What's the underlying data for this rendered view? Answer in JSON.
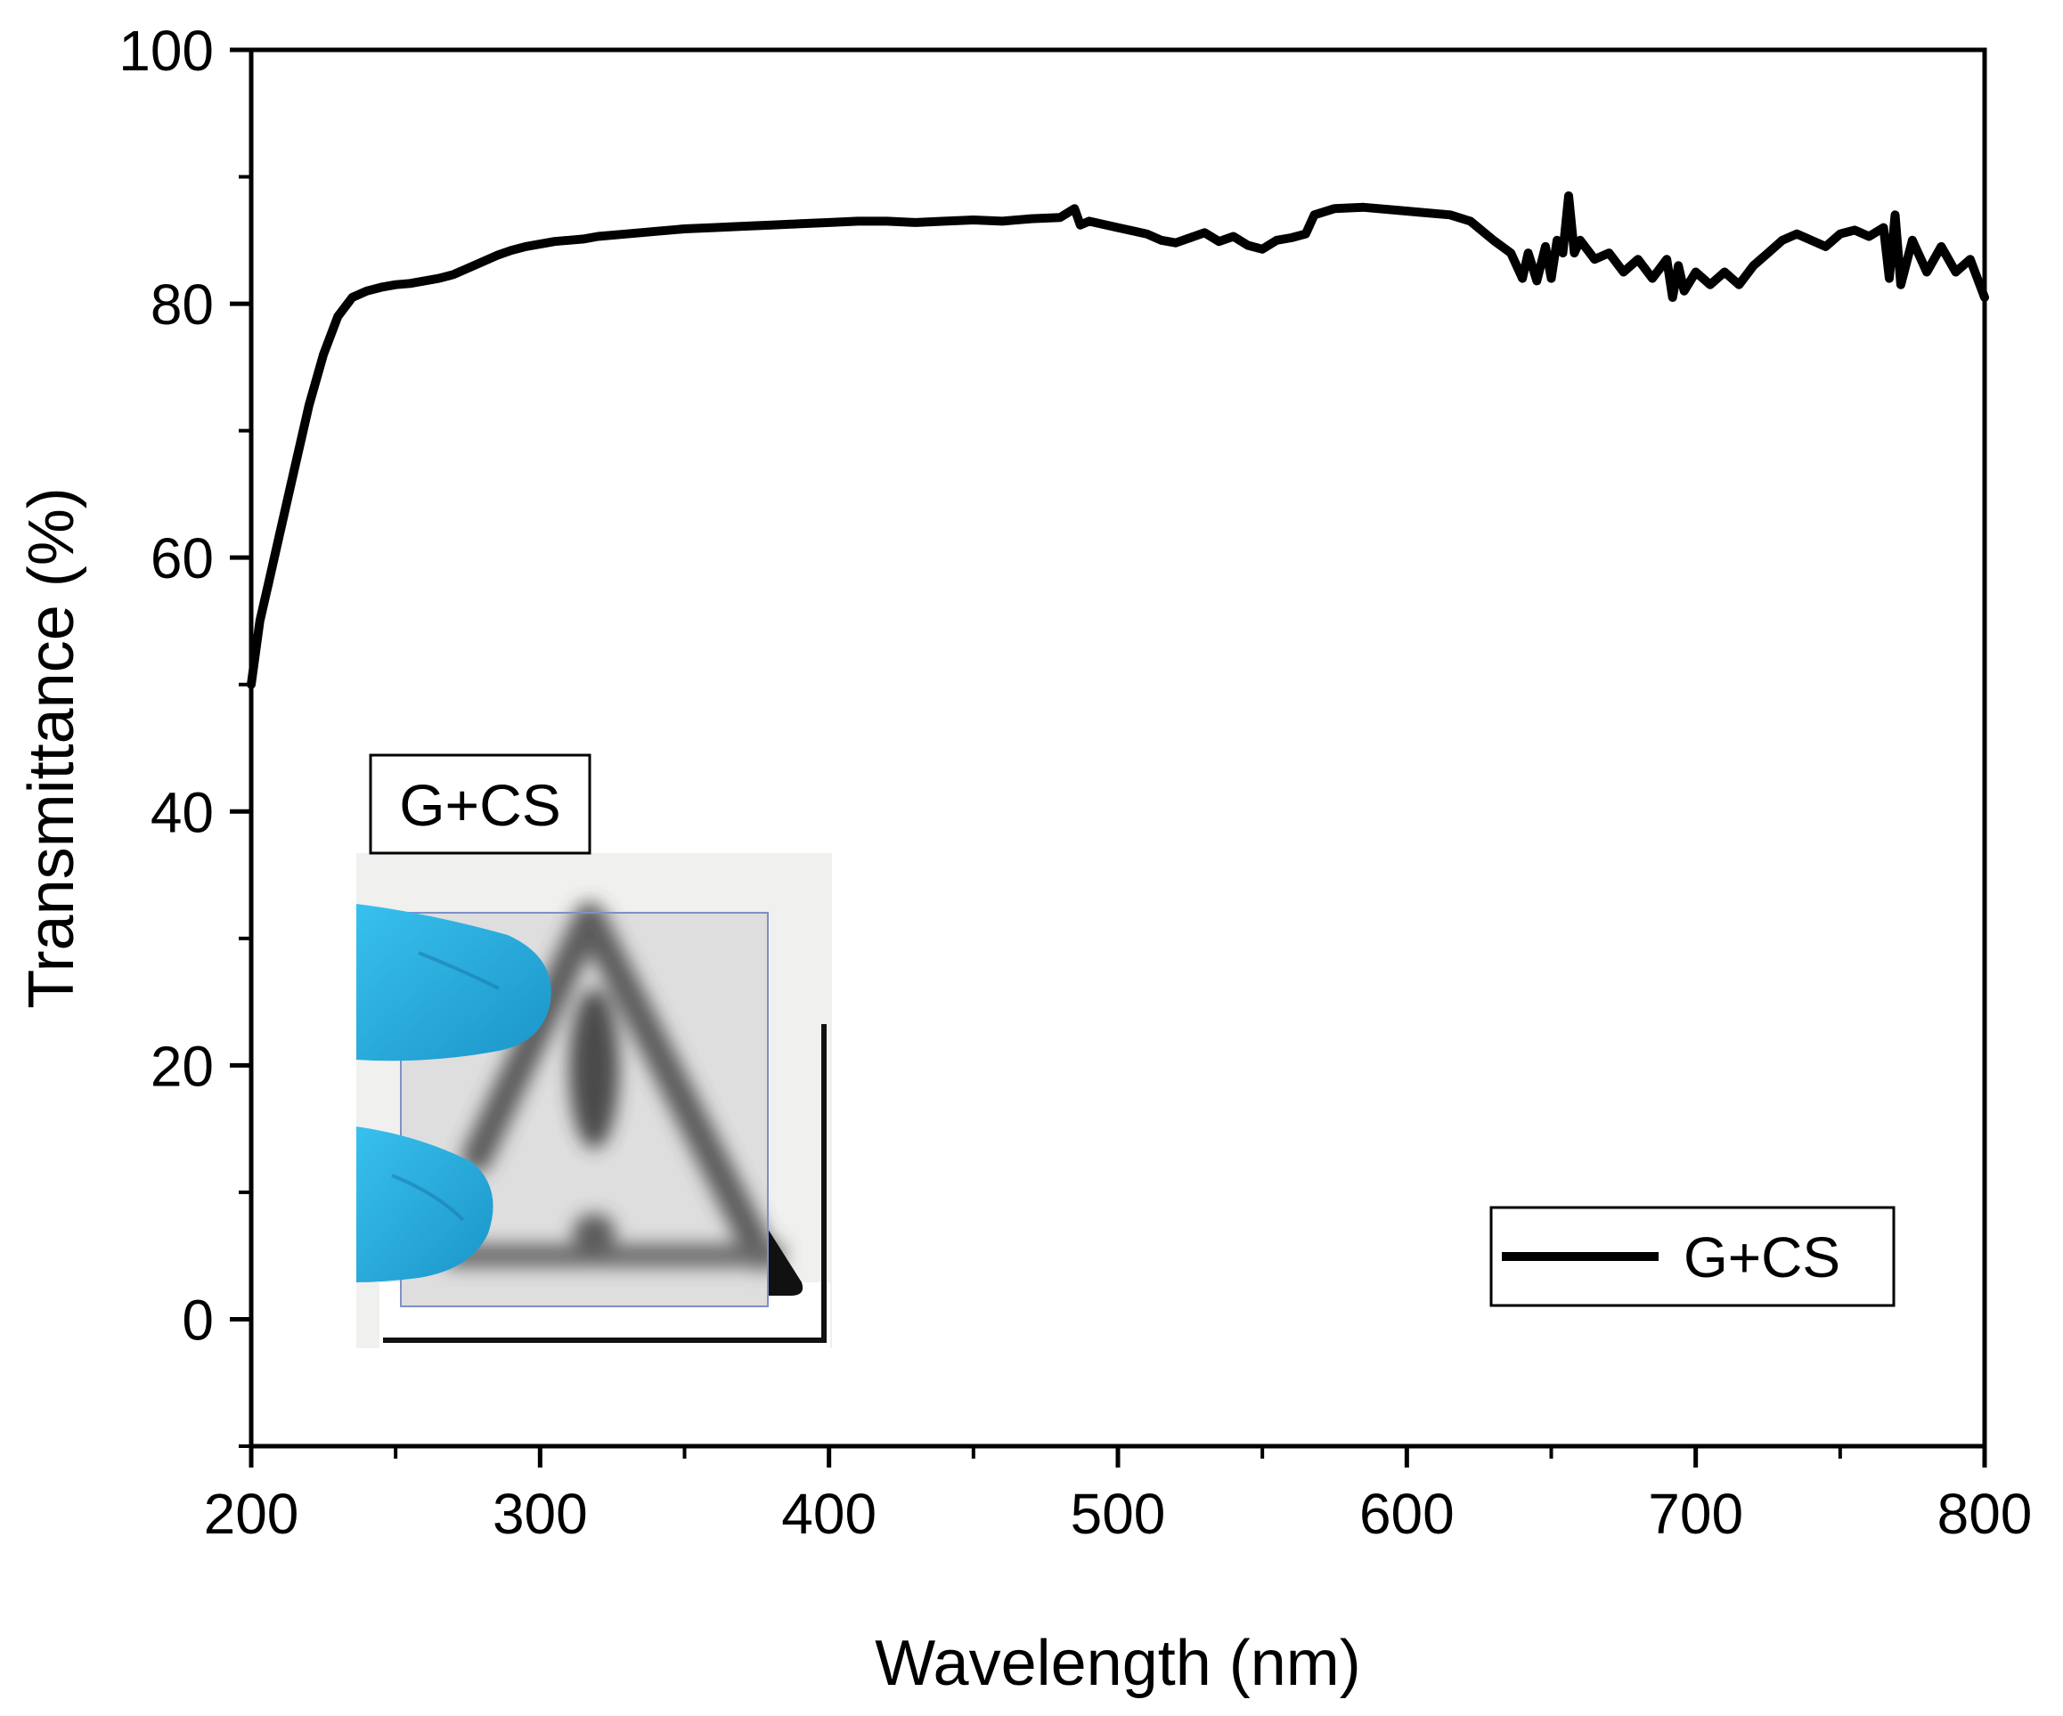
{
  "chart_data": {
    "type": "line",
    "title": "",
    "xlabel": "Wavelength (nm)",
    "ylabel": "Transmittance (%)",
    "xlim": [
      200,
      800
    ],
    "ylim": [
      -10,
      100
    ],
    "xticks": [
      200,
      300,
      400,
      500,
      600,
      700,
      800
    ],
    "yticks": [
      0,
      20,
      40,
      60,
      80,
      100
    ],
    "grid": false,
    "legend_position": "bottom-right",
    "series": [
      {
        "name": "G+CS",
        "color": "#000000",
        "x": [
          200,
          203,
          206,
          210,
          215,
          220,
          225,
          230,
          235,
          240,
          245,
          250,
          255,
          260,
          265,
          270,
          275,
          280,
          285,
          290,
          295,
          300,
          305,
          310,
          315,
          320,
          330,
          340,
          350,
          360,
          370,
          380,
          390,
          400,
          410,
          420,
          430,
          440,
          450,
          460,
          470,
          480,
          485,
          487,
          490,
          500,
          510,
          515,
          520,
          525,
          530,
          535,
          540,
          545,
          550,
          555,
          560,
          565,
          568,
          575,
          585,
          595,
          605,
          615,
          622,
          630,
          636,
          640,
          642,
          645,
          648,
          650,
          652,
          654,
          656,
          658,
          660,
          665,
          670,
          675,
          680,
          685,
          690,
          692,
          694,
          696,
          700,
          705,
          710,
          715,
          720,
          725,
          730,
          735,
          740,
          745,
          750,
          755,
          760,
          765,
          767,
          769,
          771,
          775,
          780,
          785,
          790,
          795,
          800
        ],
        "values": [
          50,
          55,
          58,
          62,
          67,
          72,
          76,
          79,
          80.5,
          81,
          81.3,
          81.5,
          81.6,
          81.8,
          82,
          82.3,
          82.8,
          83.3,
          83.8,
          84.2,
          84.5,
          84.7,
          84.9,
          85,
          85.1,
          85.3,
          85.5,
          85.7,
          85.9,
          86,
          86.1,
          86.2,
          86.3,
          86.4,
          86.5,
          86.5,
          86.4,
          86.5,
          86.6,
          86.5,
          86.7,
          86.8,
          87.5,
          86.2,
          86.5,
          86,
          85.5,
          85,
          84.8,
          85.2,
          85.6,
          84.9,
          85.3,
          84.6,
          84.3,
          85,
          85.2,
          85.5,
          87,
          87.5,
          87.6,
          87.4,
          87.2,
          87,
          86.5,
          85,
          84,
          82,
          84,
          81.8,
          84.5,
          82,
          85,
          84,
          88.5,
          84,
          85,
          83.5,
          84,
          82.5,
          83.5,
          82,
          83.5,
          80.5,
          83,
          81,
          82.5,
          81.5,
          82.5,
          81.5,
          83,
          84,
          85,
          85.5,
          85,
          84.5,
          85.5,
          85.8,
          85.3,
          86,
          82,
          87,
          81.5,
          85,
          82.5,
          84.5,
          82.5,
          83.5,
          80.5
        ]
      }
    ],
    "legend_entries": [
      "G+CS"
    ],
    "annotations": [
      "G+CS"
    ]
  },
  "colors": {
    "line": "#000000",
    "glove": "#2cb3e4",
    "inset_border": "#8899cc"
  }
}
